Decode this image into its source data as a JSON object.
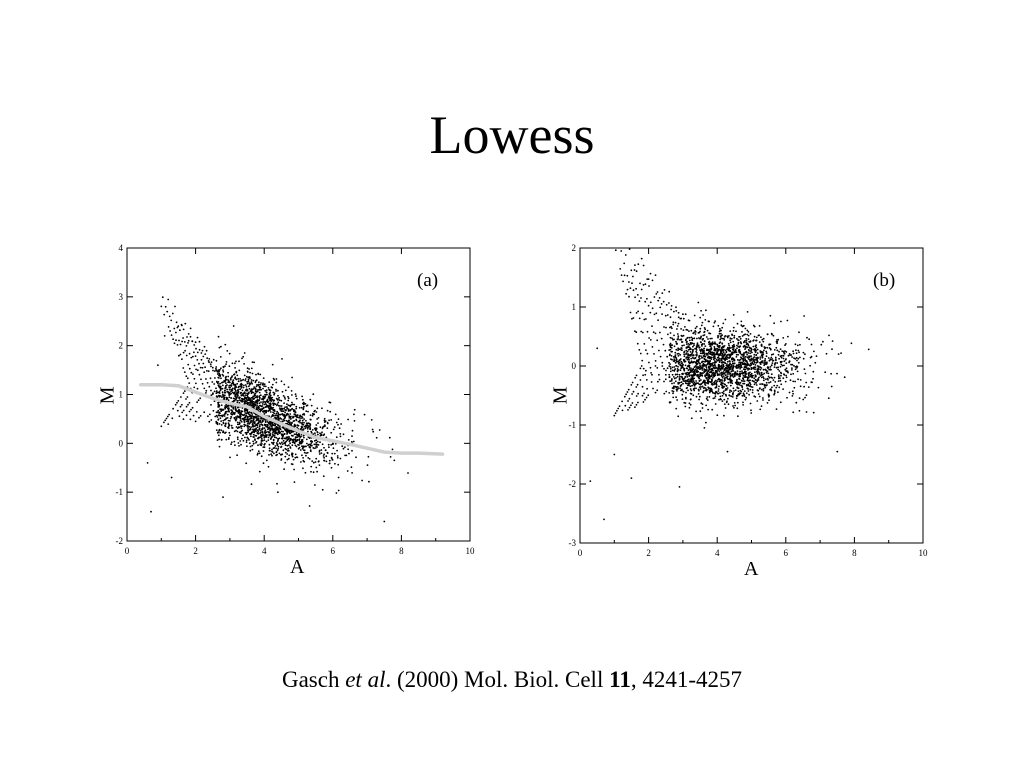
{
  "slide": {
    "title": "Lowess",
    "citation": {
      "authors": "Gasch",
      "etal": "et al",
      "after_etal": ". (2000) Mol. Biol. Cell ",
      "volume": "11",
      "pages": ", 4241-4257"
    }
  },
  "chart_data": [
    {
      "type": "scatter",
      "panel_label": "(a)",
      "xlabel": "A",
      "ylabel": "M",
      "xlim": [
        0,
        10
      ],
      "ylim": [
        -2,
        4
      ],
      "xticks": [
        "0",
        "2",
        "4",
        "6",
        "8",
        "10"
      ],
      "yticks": [
        "-2",
        "-1",
        "0",
        "1",
        "2",
        "3",
        "4"
      ],
      "grid": false,
      "point_color": "#000000",
      "fit_color": "#d0d0d0",
      "lowess_fit": {
        "x": [
          0.4,
          1.0,
          1.5,
          2.0,
          2.5,
          3.0,
          3.5,
          4.0,
          4.5,
          5.0,
          5.5,
          6.0,
          6.5,
          7.0,
          7.5,
          8.0,
          8.5,
          9.2
        ],
        "y": [
          1.2,
          1.2,
          1.18,
          1.05,
          0.92,
          0.82,
          0.75,
          0.55,
          0.4,
          0.25,
          0.12,
          0.05,
          -0.02,
          -0.1,
          -0.18,
          -0.2,
          -0.2,
          -0.22
        ]
      },
      "scatter_model": {
        "n_points": 2000,
        "center_x": 4.0,
        "spread_x": 1.2,
        "trend_x": [
          0.4,
          1.5,
          2.5,
          3.0,
          3.5,
          4.0,
          4.5,
          5.0,
          6.0,
          7.0,
          8.0,
          9.2
        ],
        "trend_y": [
          1.2,
          1.18,
          0.92,
          0.82,
          0.75,
          0.55,
          0.4,
          0.25,
          0.05,
          -0.1,
          -0.2,
          -0.22
        ],
        "spread_y": 0.35,
        "streak_y_offset": 0.0
      },
      "outliers": [
        [
          0.7,
          -1.4
        ],
        [
          2.8,
          -1.1
        ],
        [
          7.5,
          -1.6
        ],
        [
          4.4,
          -1.0
        ],
        [
          1.3,
          -0.7
        ],
        [
          0.9,
          1.6
        ],
        [
          1.1,
          2.2
        ],
        [
          0.6,
          -0.4
        ]
      ]
    },
    {
      "type": "scatter",
      "panel_label": "(b)",
      "xlabel": "A",
      "ylabel": "M",
      "xlim": [
        0,
        10
      ],
      "ylim": [
        -3,
        2
      ],
      "xticks": [
        "0",
        "2",
        "4",
        "6",
        "8",
        "10"
      ],
      "yticks": [
        "-3",
        "-2",
        "-1",
        "0",
        "1",
        "2"
      ],
      "grid": false,
      "point_color": "#000000",
      "scatter_model": {
        "n_points": 2000,
        "center_x": 4.2,
        "spread_x": 1.2,
        "trend_x": [
          0.5,
          9.2
        ],
        "trend_y": [
          0.0,
          0.0
        ],
        "spread_y": 0.3,
        "streak_y_offset": 0.6
      },
      "outliers": [
        [
          0.7,
          -2.6
        ],
        [
          2.9,
          -2.05
        ],
        [
          1.5,
          -1.9
        ],
        [
          0.3,
          -1.95
        ],
        [
          7.5,
          -1.45
        ],
        [
          4.3,
          -1.45
        ],
        [
          1.0,
          -1.5
        ],
        [
          0.5,
          0.3
        ]
      ]
    }
  ]
}
